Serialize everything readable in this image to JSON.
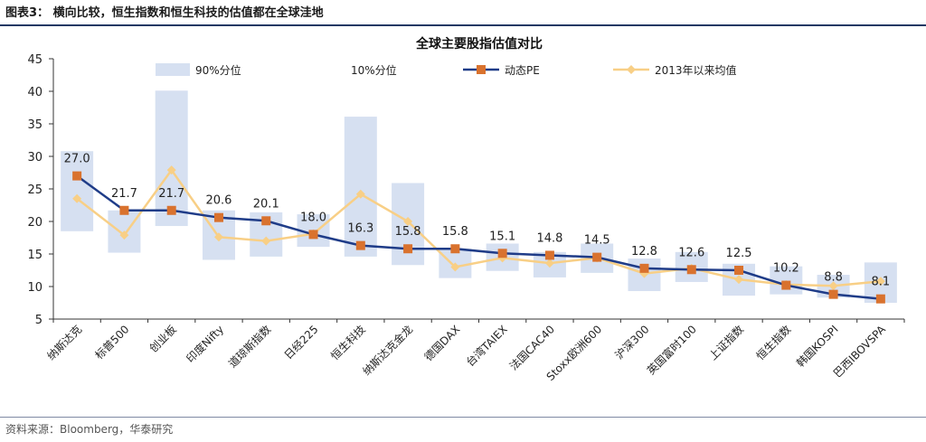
{
  "figure": {
    "title": "图表3：  横向比较，恒生指数和恒生科技的估值都在全球洼地",
    "source": "资料来源：Bloomberg，华泰研究"
  },
  "colors": {
    "band": "#d6e0f1",
    "pe_line": "#1f3c88",
    "pe_marker": "#d9722e",
    "avg": "#f8cf86",
    "axis": "#333333",
    "rule": "#1f3864"
  },
  "chart_data": {
    "type": "line",
    "title": "全球主要股指估值对比",
    "categories": [
      "纳斯达克",
      "标普500",
      "创业板",
      "印度Nifty",
      "道琼斯指数",
      "日经225",
      "恒生科技",
      "纳斯达克金龙",
      "德国DAX",
      "台湾TAIEX",
      "法国CAC40",
      "Stoxx欧洲600",
      "沪深300",
      "英国富时100",
      "上证指数",
      "恒生指数",
      "韩国KOSPI",
      "巴西IBOVSPA"
    ],
    "ylim": [
      5,
      45
    ],
    "yticks": [
      5,
      10,
      15,
      20,
      25,
      30,
      35,
      40,
      45
    ],
    "grid": false,
    "legend_position": "top",
    "series": [
      {
        "name": "90%分位",
        "kind": "band-top",
        "values": [
          30.8,
          21.7,
          40.1,
          21.7,
          21.4,
          21.1,
          36.1,
          25.9,
          15.8,
          16.6,
          15.3,
          16.6,
          14.3,
          15.3,
          13.5,
          13.1,
          11.8,
          13.7
        ]
      },
      {
        "name": "10%分位",
        "kind": "band-bottom",
        "values": [
          18.5,
          15.2,
          19.3,
          14.1,
          14.6,
          16.1,
          14.6,
          13.3,
          11.3,
          12.4,
          11.4,
          12.1,
          9.3,
          10.7,
          8.6,
          8.8,
          8.3,
          7.5
        ]
      },
      {
        "name": "动态PE",
        "kind": "line",
        "values": [
          27.0,
          21.7,
          21.7,
          20.6,
          20.1,
          18.0,
          16.3,
          15.8,
          15.8,
          15.1,
          14.8,
          14.5,
          12.8,
          12.6,
          12.5,
          10.2,
          8.8,
          8.1
        ],
        "labels": [
          "27.0",
          "21.7",
          "21.7",
          "20.6",
          "20.1",
          "18.0",
          "16.3",
          "15.8",
          "15.8",
          "15.1",
          "14.8",
          "14.5",
          "12.8",
          "12.6",
          "12.5",
          "10.2",
          "8.8",
          "8.1"
        ]
      },
      {
        "name": "2013年以来均值",
        "kind": "line",
        "values": [
          23.5,
          17.9,
          27.9,
          17.6,
          17.0,
          18.1,
          24.2,
          20.0,
          13.0,
          14.4,
          13.6,
          14.4,
          12.0,
          12.8,
          11.1,
          10.3,
          10.1,
          10.8
        ]
      }
    ]
  }
}
